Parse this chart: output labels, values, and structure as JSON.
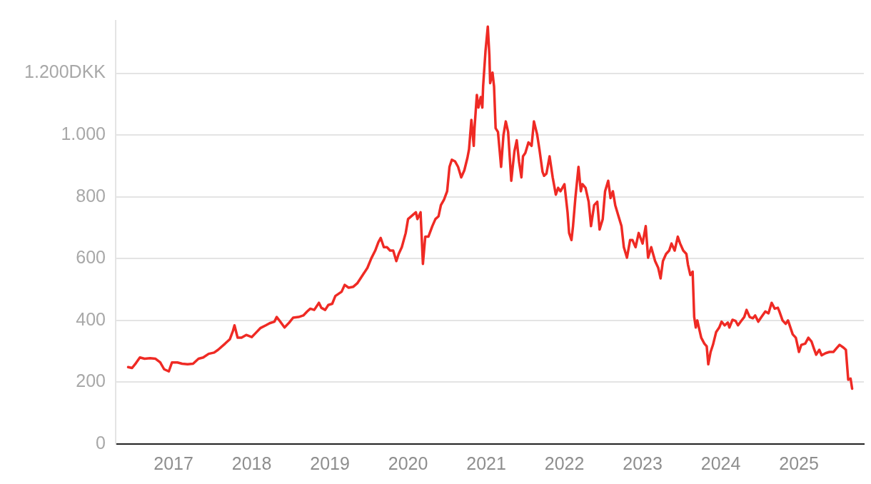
{
  "chart_data": {
    "type": "line",
    "grid": "y",
    "legend": false,
    "marker": "none",
    "line_style": "solid",
    "xlim": [
      2016.26,
      2025.83
    ],
    "xticks": [
      2017,
      2018,
      2019,
      2020,
      2021,
      2022,
      2023,
      2024,
      2025
    ],
    "ylim": [
      0,
      1370
    ],
    "yticks": [
      0,
      200,
      400,
      600,
      800,
      {
        "value": 1000,
        "label": "1.000"
      },
      {
        "value": 1200,
        "label": "1.200DKK"
      }
    ],
    "series": [
      {
        "color": "#ef2a24",
        "x": [
          2016.42,
          2016.47,
          2016.52,
          2016.57,
          2016.63,
          2016.7,
          2016.77,
          2016.83,
          2016.88,
          2016.94,
          2016.98,
          2017.05,
          2017.11,
          2017.18,
          2017.25,
          2017.32,
          2017.38,
          2017.45,
          2017.52,
          2017.57,
          2017.66,
          2017.72,
          2017.76,
          2017.78,
          2017.82,
          2017.87,
          2017.93,
          2018.0,
          2018.05,
          2018.11,
          2018.18,
          2018.23,
          2018.29,
          2018.32,
          2018.36,
          2018.42,
          2018.48,
          2018.53,
          2018.6,
          2018.66,
          2018.71,
          2018.75,
          2018.8,
          2018.86,
          2018.89,
          2018.94,
          2018.98,
          2019.03,
          2019.07,
          2019.15,
          2019.19,
          2019.24,
          2019.3,
          2019.35,
          2019.42,
          2019.48,
          2019.53,
          2019.58,
          2019.62,
          2019.65,
          2019.69,
          2019.73,
          2019.77,
          2019.81,
          2019.85,
          2019.88,
          2019.92,
          2019.97,
          2020.0,
          2020.05,
          2020.1,
          2020.12,
          2020.16,
          2020.19,
          2020.22,
          2020.26,
          2020.31,
          2020.35,
          2020.39,
          2020.42,
          2020.46,
          2020.5,
          2020.53,
          2020.56,
          2020.6,
          2020.64,
          2020.68,
          2020.72,
          2020.76,
          2020.78,
          2020.81,
          2020.84,
          2020.85,
          2020.88,
          2020.9,
          2020.93,
          2020.95,
          2020.96,
          2020.99,
          2021.02,
          2021.04,
          2021.05,
          2021.08,
          2021.1,
          2021.12,
          2021.15,
          2021.17,
          2021.19,
          2021.22,
          2021.25,
          2021.28,
          2021.32,
          2021.36,
          2021.39,
          2021.42,
          2021.45,
          2021.47,
          2021.5,
          2021.54,
          2021.58,
          2021.61,
          2021.65,
          2021.68,
          2021.72,
          2021.74,
          2021.77,
          2021.81,
          2021.85,
          2021.89,
          2021.92,
          2021.95,
          2022.0,
          2022.04,
          2022.06,
          2022.09,
          2022.11,
          2022.14,
          2022.18,
          2022.21,
          2022.23,
          2022.27,
          2022.31,
          2022.34,
          2022.38,
          2022.42,
          2022.45,
          2022.49,
          2022.52,
          2022.56,
          2022.59,
          2022.62,
          2022.65,
          2022.69,
          2022.73,
          2022.76,
          2022.8,
          2022.84,
          2022.87,
          2022.91,
          2022.95,
          2023.0,
          2023.04,
          2023.07,
          2023.11,
          2023.16,
          2023.2,
          2023.23,
          2023.26,
          2023.3,
          2023.34,
          2023.37,
          2023.41,
          2023.45,
          2023.48,
          2023.52,
          2023.56,
          2023.58,
          2023.61,
          2023.64,
          2023.66,
          2023.68,
          2023.7,
          2023.72,
          2023.75,
          2023.79,
          2023.82,
          2023.84,
          2023.87,
          2023.9,
          2023.94,
          2023.98,
          2024.01,
          2024.05,
          2024.09,
          2024.11,
          2024.15,
          2024.19,
          2024.22,
          2024.26,
          2024.3,
          2024.33,
          2024.37,
          2024.41,
          2024.44,
          2024.48,
          2024.52,
          2024.57,
          2024.61,
          2024.65,
          2024.69,
          2024.73,
          2024.75,
          2024.79,
          2024.83,
          2024.86,
          2024.92,
          2024.96,
          2025.0,
          2025.03,
          2025.08,
          2025.12,
          2025.16,
          2025.19,
          2025.22,
          2025.26,
          2025.29,
          2025.34,
          2025.39,
          2025.44,
          2025.48,
          2025.52,
          2025.57,
          2025.6,
          2025.63,
          2025.66,
          2025.68
        ],
        "values": [
          249,
          246,
          262,
          280,
          276,
          278,
          276,
          264,
          242,
          235,
          264,
          264,
          260,
          258,
          260,
          276,
          280,
          292,
          296,
          305,
          325,
          339,
          366,
          384,
          344,
          344,
          353,
          346,
          359,
          375,
          384,
          391,
          396,
          411,
          398,
          377,
          393,
          409,
          411,
          416,
          429,
          438,
          434,
          457,
          441,
          434,
          450,
          454,
          479,
          493,
          515,
          506,
          509,
          520,
          547,
          570,
          601,
          626,
          653,
          667,
          637,
          637,
          626,
          626,
          592,
          615,
          637,
          683,
          728,
          739,
          750,
          728,
          750,
          583,
          671,
          671,
          705,
          728,
          737,
          773,
          791,
          818,
          897,
          920,
          915,
          897,
          863,
          886,
          927,
          954,
          1049,
          965,
          1022,
          1130,
          1089,
          1123,
          1089,
          1157,
          1270,
          1351,
          1259,
          1168,
          1202,
          1157,
          1022,
          1010,
          954,
          897,
          999,
          1044,
          1010,
          852,
          947,
          983,
          913,
          863,
          931,
          942,
          976,
          965,
          1044,
          1003,
          954,
          881,
          868,
          875,
          931,
          863,
          807,
          829,
          818,
          841,
          750,
          683,
          660,
          705,
          796,
          897,
          818,
          841,
          829,
          784,
          705,
          773,
          784,
          694,
          728,
          818,
          852,
          796,
          818,
          773,
          739,
          705,
          637,
          603,
          660,
          660,
          637,
          683,
          649,
          705,
          603,
          637,
          592,
          570,
          536,
          592,
          615,
          626,
          649,
          626,
          671,
          649,
          626,
          615,
          581,
          547,
          558,
          411,
          377,
          400,
          377,
          344,
          325,
          316,
          258,
          298,
          321,
          362,
          377,
          396,
          384,
          393,
          377,
          402,
          398,
          384,
          398,
          411,
          434,
          411,
          407,
          416,
          396,
          411,
          429,
          423,
          457,
          438,
          441,
          429,
          400,
          389,
          400,
          355,
          344,
          298,
          321,
          325,
          344,
          332,
          310,
          289,
          305,
          287,
          294,
          298,
          298,
          310,
          321,
          312,
          305,
          208,
          212,
          179
        ]
      }
    ]
  }
}
